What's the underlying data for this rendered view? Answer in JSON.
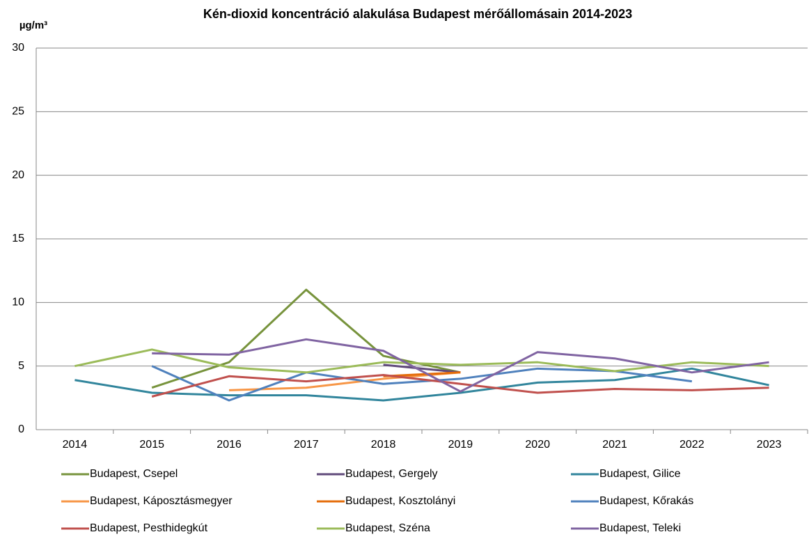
{
  "chart_data": {
    "type": "line",
    "title": "Kén-dioxid koncentráció alakulása Budapest mérőállomásain 2014-2023",
    "y_label": "µg/m³",
    "categories": [
      "2014",
      "2015",
      "2016",
      "2017",
      "2018",
      "2019",
      "2020",
      "2021",
      "2022",
      "2023"
    ],
    "ylim": [
      0,
      30
    ],
    "yticks": [
      0,
      5,
      10,
      15,
      20,
      25,
      30
    ],
    "grid": true,
    "legend": "bottom",
    "series": [
      {
        "name": "Budapest, Csepel",
        "color": "#77933c",
        "values": [
          null,
          3.3,
          5.3,
          11,
          5.8,
          4.5,
          null,
          null,
          null,
          null
        ]
      },
      {
        "name": "Budapest, Gergely",
        "color": "#604a7b",
        "values": [
          null,
          null,
          null,
          null,
          5.1,
          4.5,
          null,
          null,
          null,
          null
        ]
      },
      {
        "name": "Budapest, Gilice",
        "color": "#31859c",
        "values": [
          3.9,
          2.9,
          2.7,
          2.7,
          2.3,
          2.9,
          3.7,
          3.9,
          4.8,
          3.5
        ]
      },
      {
        "name": "Budapest, Káposztásmegyer",
        "color": "#f79646",
        "values": [
          null,
          null,
          3.1,
          3.3,
          4.0,
          4.5,
          null,
          null,
          null,
          null
        ]
      },
      {
        "name": "Budapest, Kosztolányi",
        "color": "#e46c0a",
        "values": [
          null,
          null,
          null,
          null,
          4.2,
          4.5,
          null,
          null,
          null,
          null
        ]
      },
      {
        "name": "Budapest, Kőrakás",
        "color": "#4f81bd",
        "values": [
          null,
          5.0,
          2.3,
          4.5,
          3.6,
          4.0,
          4.8,
          4.6,
          3.8,
          null
        ]
      },
      {
        "name": "Budapest, Pesthidegkút",
        "color": "#c0504d",
        "values": [
          null,
          2.6,
          4.2,
          3.8,
          4.3,
          3.6,
          2.9,
          3.2,
          3.1,
          3.3
        ]
      },
      {
        "name": "Budapest, Széna",
        "color": "#9bbb59",
        "values": [
          5.0,
          6.3,
          4.9,
          4.5,
          5.3,
          5.1,
          5.3,
          4.6,
          5.3,
          5.0
        ]
      },
      {
        "name": "Budapest, Teleki",
        "color": "#8064a2",
        "values": [
          null,
          6.0,
          5.9,
          7.1,
          6.2,
          3.0,
          6.1,
          5.6,
          4.5,
          5.3
        ]
      }
    ]
  }
}
